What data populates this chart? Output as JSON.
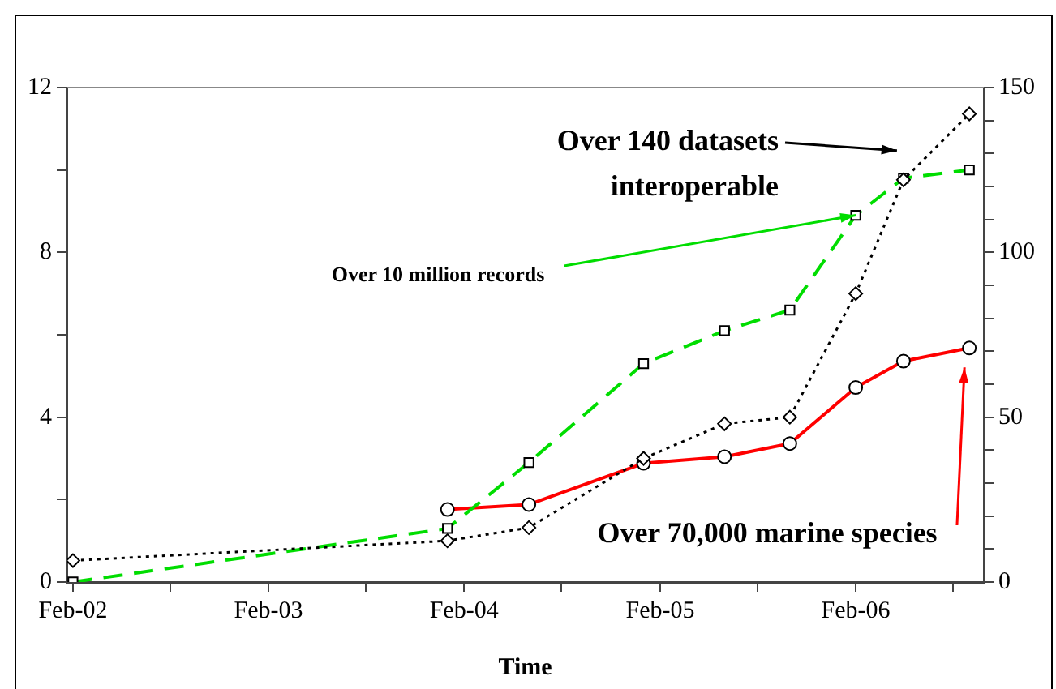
{
  "chart_data": {
    "type": "line",
    "xlabel": "Time",
    "xlim": [
      "2002-01-20",
      "2006-09-28"
    ],
    "xticks": [
      {
        "value": "2002-02",
        "label": "Feb-02"
      },
      {
        "value": "2002-08",
        "label": null
      },
      {
        "value": "2003-02",
        "label": "Feb-03"
      },
      {
        "value": "2003-08",
        "label": null
      },
      {
        "value": "2004-02",
        "label": "Feb-04"
      },
      {
        "value": "2004-08",
        "label": null
      },
      {
        "value": "2005-02",
        "label": "Feb-05"
      },
      {
        "value": "2005-08",
        "label": null
      },
      {
        "value": "2006-02",
        "label": "Feb-06"
      },
      {
        "value": "2006-08",
        "label": null
      }
    ],
    "ylim": [
      0,
      12
    ],
    "yticks": [
      0,
      {
        "value": 2,
        "label": null
      },
      4,
      {
        "value": 6,
        "label": null
      },
      8,
      {
        "value": 10,
        "label": null
      },
      12
    ],
    "y2lim": [
      0,
      150
    ],
    "y2ticks": [
      0,
      {
        "value": 10,
        "label": null
      },
      {
        "value": 20,
        "label": null
      },
      {
        "value": 30,
        "label": null
      },
      {
        "value": 40,
        "label": null
      },
      50,
      {
        "value": 60,
        "label": null
      },
      {
        "value": 70,
        "label": null
      },
      {
        "value": 80,
        "label": null
      },
      {
        "value": 90,
        "label": null
      },
      100,
      {
        "value": 110,
        "label": null
      },
      {
        "value": 120,
        "label": null
      },
      {
        "value": 130,
        "label": null
      },
      {
        "value": 140,
        "label": null
      },
      150
    ],
    "grid": false,
    "legend": false,
    "series": [
      {
        "color": "#000000",
        "axis": "y2",
        "marker": "diamond",
        "line_style": "dotted",
        "x": [
          "2002-02",
          "2004-01",
          "2004-06",
          "2005-01",
          "2005-06",
          "2005-10",
          "2006-02",
          "2006-05",
          "2006-09"
        ],
        "values": [
          6.5,
          12.5,
          16.5,
          37.5,
          48,
          50,
          87.5,
          122,
          142
        ]
      },
      {
        "color": "#00dd00",
        "axis": "y",
        "marker": "square",
        "line_style": "dashed",
        "x": [
          "2002-02",
          "2004-01",
          "2004-06",
          "2005-01",
          "2005-06",
          "2005-10",
          "2006-02",
          "2006-05",
          "2006-09"
        ],
        "values": [
          0,
          1.3,
          2.9,
          5.3,
          6.1,
          6.6,
          8.9,
          9.8,
          10
        ]
      },
      {
        "color": "#ff0000",
        "axis": "y2",
        "marker": "circle",
        "line_style": "solid",
        "x": [
          "2004-01",
          "2004-06",
          "2005-01",
          "2005-06",
          "2005-10",
          "2006-02",
          "2006-05",
          "2006-09"
        ],
        "values": [
          22,
          23.5,
          36,
          38,
          42,
          59,
          67,
          71
        ]
      }
    ],
    "annotations": [
      "Over 140 datasets\ninteroperable",
      {
        "text": "Over 10 million records",
        "x": "2006-02",
        "y": 8.9
      },
      "Over 70,000 marine species"
    ]
  }
}
